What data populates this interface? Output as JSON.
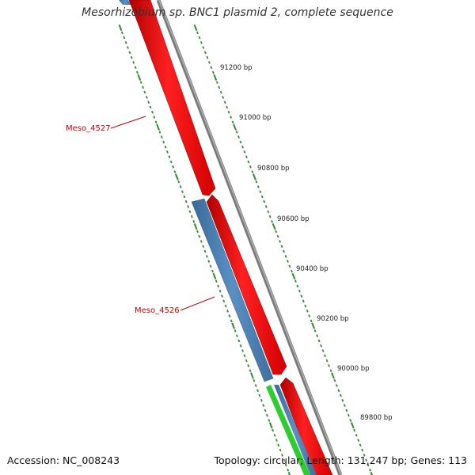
{
  "title": "Mesorhizobium sp. BNC1 plasmid 2, complete sequence",
  "footer": {
    "accession": "Accession: NC_008243",
    "summary": "Topology: circular; Length: 131,247 bp; Genes: 113"
  },
  "scale": {
    "tick_labels": [
      "91200 bp",
      "91000 bp",
      "90800 bp",
      "90600 bp",
      "90400 bp",
      "90200 bp",
      "90000 bp",
      "89800 bp"
    ]
  },
  "genes": [
    {
      "label": "Meso_4527",
      "color": "#cc0000"
    },
    {
      "label": "Meso_4526",
      "color": "#cc0000"
    }
  ],
  "colors": {
    "forward_cds": "#ff0000",
    "reverse_cds": "#4f81bd",
    "other_feature": "#2fcc2f",
    "backbone": "#888888",
    "ticks": "#2e8b2e"
  }
}
